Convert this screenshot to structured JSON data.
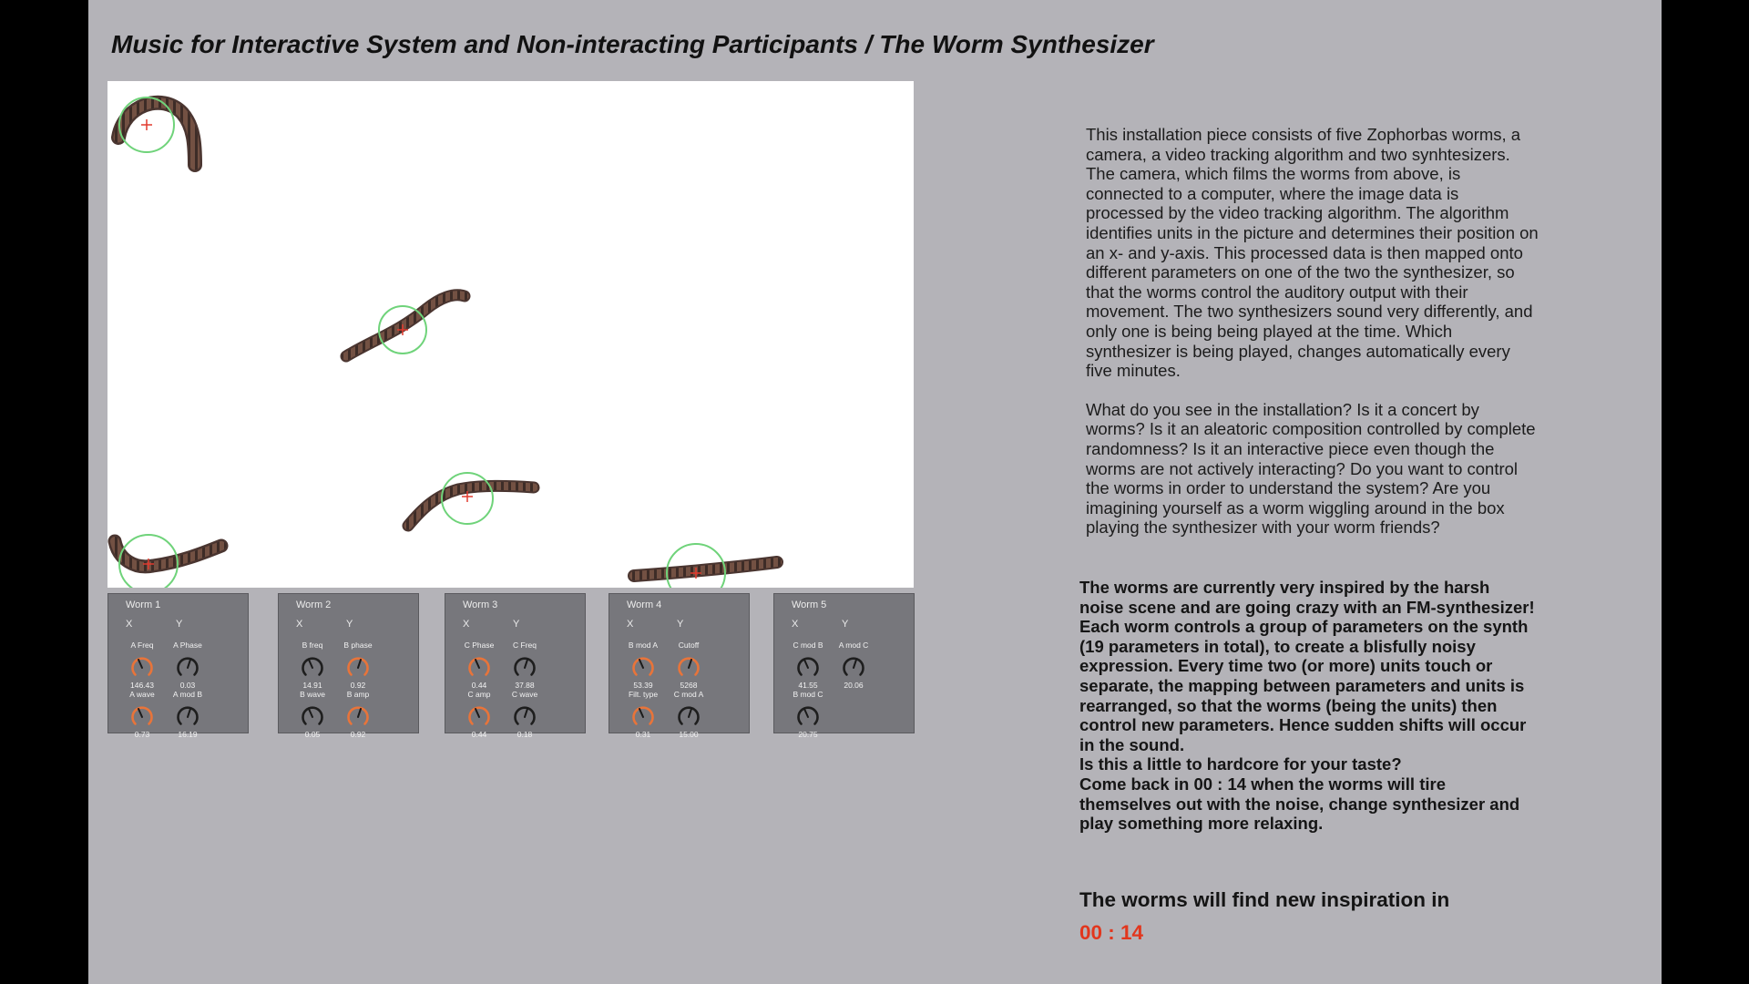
{
  "title": "Music for Interactive System and Non-interacting Participants / The Worm Synthesizer",
  "colors": {
    "accent_orange": "#e8743a",
    "tracking_green": "#6fd37a",
    "tracking_red": "#e23a2e",
    "timer_red": "#e2361d",
    "panel_bg": "#77777c"
  },
  "panels": [
    {
      "title": "Worm 1",
      "x_label": "X",
      "y_label": "Y",
      "knobs": [
        {
          "label": "A Freq",
          "value": "146.43",
          "accent": true
        },
        {
          "label": "A Phase",
          "value": "0.03",
          "accent": false
        },
        {
          "label": "A wave",
          "value": "0.73",
          "accent": true
        },
        {
          "label": "A mod B",
          "value": "16.19",
          "accent": false
        }
      ]
    },
    {
      "title": "Worm 2",
      "x_label": "X",
      "y_label": "Y",
      "knobs": [
        {
          "label": "B freq",
          "value": "14.91",
          "accent": false
        },
        {
          "label": "B phase",
          "value": "0.92",
          "accent": true
        },
        {
          "label": "B wave",
          "value": "0.05",
          "accent": false
        },
        {
          "label": "B amp",
          "value": "0.92",
          "accent": true
        }
      ]
    },
    {
      "title": "Worm 3",
      "x_label": "X",
      "y_label": "Y",
      "knobs": [
        {
          "label": "C Phase",
          "value": "0.44",
          "accent": true
        },
        {
          "label": "C Freq",
          "value": "37.88",
          "accent": false
        },
        {
          "label": "C amp",
          "value": "0.44",
          "accent": true
        },
        {
          "label": "C wave",
          "value": "0.18",
          "accent": false
        }
      ]
    },
    {
      "title": "Worm 4",
      "x_label": "X",
      "y_label": "Y",
      "knobs": [
        {
          "label": "B mod A",
          "value": "53.39",
          "accent": true
        },
        {
          "label": "Cutoff",
          "value": "5268",
          "accent": true
        },
        {
          "label": "Filt. type",
          "value": "0.31",
          "accent": true
        },
        {
          "label": "C mod A",
          "value": "15.00",
          "accent": false
        }
      ]
    },
    {
      "title": "Worm 5",
      "x_label": "X",
      "y_label": "Y",
      "knobs": [
        {
          "label": "C mod B",
          "value": "41.55",
          "accent": false
        },
        {
          "label": "A mod C",
          "value": "20.06",
          "accent": false
        },
        {
          "label": "B mod C",
          "value": "20.75",
          "accent": false
        }
      ]
    }
  ],
  "description": {
    "p1": "This installation piece consists of five Zophorbas worms, a camera, a video tracking algorithm and two synhtesizers. The camera, which films the worms from above, is connected to a computer, where the image data is processed by the video tracking algorithm. The algorithm identifies units in the picture and determines their position on an x- and y-axis. This processed data is then mapped onto different parameters on one of the two the synthesizer, so that the worms control the auditory output with their movement. The two synthesizers sound very differently, and only one is being being played at the time. Which synthesizer is being played, changes automatically every five minutes.",
    "p2": "What do you see in the installation? Is it a concert by worms? Is it an aleatoric composition controlled by complete randomness? Is it an interactive piece even though the worms are not actively interacting? Do you want to control the worms in order to understand the system? Are you imagining yourself as a worm wiggling around in the box playing the synthesizer with your worm friends?"
  },
  "current_state": {
    "main": "The worms are currently very inspired by the harsh noise scene and are going crazy with an FM-synthesizer! Each worm controls a group of parameters on the synth (19 parameters in total), to create a blisfully noisy expression. Every time two (or more) units touch or separate, the mapping between parameters and units is rearranged, so that the worms (being the units) then control new parameters. Hence sudden shifts will occur in the sound.",
    "question": "Is this a little to hardcore for your taste?",
    "come_back_prefix": "Come back in",
    "come_back_timer": "00 : 14",
    "come_back_suffix": "when the worms will tire themselves out with the noise, change synthesizer and play something more relaxing."
  },
  "inspiration_label": "The worms will find new inspiration in",
  "countdown": "00 : 14"
}
